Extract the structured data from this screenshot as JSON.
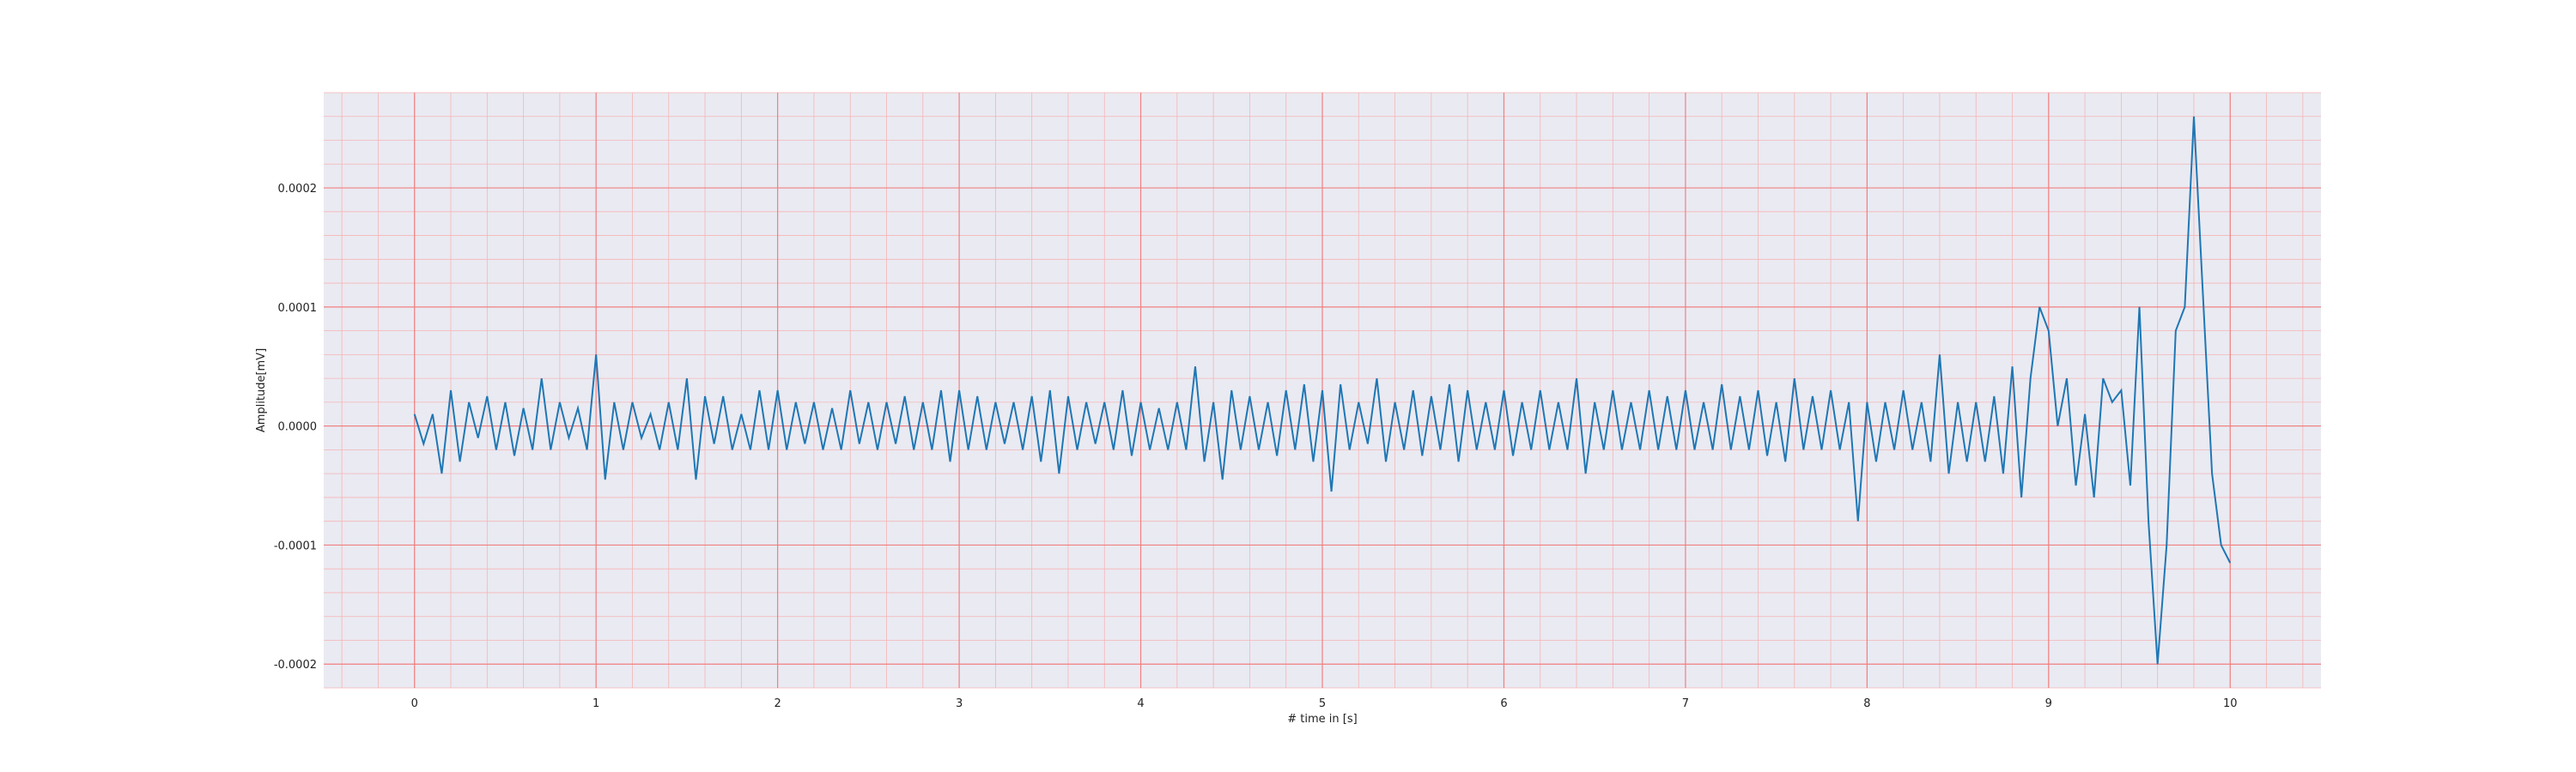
{
  "chart_data": {
    "type": "line",
    "title": "",
    "xlabel": "# time in [s]",
    "ylabel": "Amplitude[mV]",
    "xlim": [
      -0.5,
      10.5
    ],
    "ylim": [
      -0.00022,
      0.00028
    ],
    "xticks": [
      0,
      1,
      2,
      3,
      4,
      5,
      6,
      7,
      8,
      9,
      10
    ],
    "xtick_labels": [
      "0",
      "1",
      "2",
      "3",
      "4",
      "5",
      "6",
      "7",
      "8",
      "9",
      "10"
    ],
    "yticks": [
      -0.0002,
      -0.0001,
      0.0,
      0.0001,
      0.0002
    ],
    "ytick_labels": [
      "-0.0002",
      "-0.0001",
      "0.0000",
      "0.0001",
      "0.0002"
    ],
    "grid": true,
    "minor_grid": true,
    "legend": false,
    "colors": {
      "plot_background": "#eaeaf2",
      "major_grid": "#f08080",
      "minor_grid": "#f5b5b5",
      "line": "#1f77b4"
    },
    "series": [
      {
        "x": [
          0,
          0.05,
          0.1,
          0.15,
          0.2,
          0.25,
          0.3,
          0.35,
          0.4,
          0.45,
          0.5,
          0.55,
          0.6,
          0.65,
          0.7,
          0.75,
          0.8,
          0.85,
          0.9,
          0.95,
          1.0,
          1.05,
          1.1,
          1.15,
          1.2,
          1.25,
          1.3,
          1.35,
          1.4,
          1.45,
          1.5,
          1.55,
          1.6,
          1.65,
          1.7,
          1.75,
          1.8,
          1.85,
          1.9,
          1.95,
          2.0,
          2.05,
          2.1,
          2.15,
          2.2,
          2.25,
          2.3,
          2.35,
          2.4,
          2.45,
          2.5,
          2.55,
          2.6,
          2.65,
          2.7,
          2.75,
          2.8,
          2.85,
          2.9,
          2.95,
          3.0,
          3.05,
          3.1,
          3.15,
          3.2,
          3.25,
          3.3,
          3.35,
          3.4,
          3.45,
          3.5,
          3.55,
          3.6,
          3.65,
          3.7,
          3.75,
          3.8,
          3.85,
          3.9,
          3.95,
          4.0,
          4.05,
          4.1,
          4.15,
          4.2,
          4.25,
          4.3,
          4.35,
          4.4,
          4.45,
          4.5,
          4.55,
          4.6,
          4.65,
          4.7,
          4.75,
          4.8,
          4.85,
          4.9,
          4.95,
          5.0,
          5.05,
          5.1,
          5.15,
          5.2,
          5.25,
          5.3,
          5.35,
          5.4,
          5.45,
          5.5,
          5.55,
          5.6,
          5.65,
          5.7,
          5.75,
          5.8,
          5.85,
          5.9,
          5.95,
          6.0,
          6.05,
          6.1,
          6.15,
          6.2,
          6.25,
          6.3,
          6.35,
          6.4,
          6.45,
          6.5,
          6.55,
          6.6,
          6.65,
          6.7,
          6.75,
          6.8,
          6.85,
          6.9,
          6.95,
          7.0,
          7.05,
          7.1,
          7.15,
          7.2,
          7.25,
          7.3,
          7.35,
          7.4,
          7.45,
          7.5,
          7.55,
          7.6,
          7.65,
          7.7,
          7.75,
          7.8,
          7.85,
          7.9,
          7.95,
          8.0,
          8.05,
          8.1,
          8.15,
          8.2,
          8.25,
          8.3,
          8.35,
          8.4,
          8.45,
          8.5,
          8.55,
          8.6,
          8.65,
          8.7,
          8.75,
          8.8,
          8.85,
          8.9,
          8.95,
          9.0,
          9.05,
          9.1,
          9.15,
          9.2,
          9.25,
          9.3,
          9.35,
          9.4,
          9.45,
          9.5,
          9.55,
          9.6,
          9.65,
          9.7,
          9.75,
          9.8,
          9.85,
          9.9,
          9.95,
          10.0
        ],
        "y": [
          1e-05,
          -1.5e-05,
          1e-05,
          -4e-05,
          3e-05,
          -3e-05,
          2e-05,
          -1e-05,
          2.5e-05,
          -2e-05,
          2e-05,
          -2.5e-05,
          1.5e-05,
          -2e-05,
          4e-05,
          -2e-05,
          2e-05,
          -1e-05,
          1.5e-05,
          -2e-05,
          6e-05,
          -4.5e-05,
          2e-05,
          -2e-05,
          2e-05,
          -1e-05,
          1e-05,
          -2e-05,
          2e-05,
          -2e-05,
          4e-05,
          -4.5e-05,
          2.5e-05,
          -1.5e-05,
          2.5e-05,
          -2e-05,
          1e-05,
          -2e-05,
          3e-05,
          -2e-05,
          3e-05,
          -2e-05,
          2e-05,
          -1.5e-05,
          2e-05,
          -2e-05,
          1.5e-05,
          -2e-05,
          3e-05,
          -1.5e-05,
          2e-05,
          -2e-05,
          2e-05,
          -1.5e-05,
          2.5e-05,
          -2e-05,
          2e-05,
          -2e-05,
          3e-05,
          -3e-05,
          3e-05,
          -2e-05,
          2.5e-05,
          -2e-05,
          2e-05,
          -1.5e-05,
          2e-05,
          -2e-05,
          2.5e-05,
          -3e-05,
          3e-05,
          -4e-05,
          2.5e-05,
          -2e-05,
          2e-05,
          -1.5e-05,
          2e-05,
          -2e-05,
          3e-05,
          -2.5e-05,
          2e-05,
          -2e-05,
          1.5e-05,
          -2e-05,
          2e-05,
          -2e-05,
          5e-05,
          -3e-05,
          2e-05,
          -4.5e-05,
          3e-05,
          -2e-05,
          2.5e-05,
          -2e-05,
          2e-05,
          -2.5e-05,
          3e-05,
          -2e-05,
          3.5e-05,
          -3e-05,
          3e-05,
          -5.5e-05,
          3.5e-05,
          -2e-05,
          2e-05,
          -1.5e-05,
          4e-05,
          -3e-05,
          2e-05,
          -2e-05,
          3e-05,
          -2.5e-05,
          2.5e-05,
          -2e-05,
          3.5e-05,
          -3e-05,
          3e-05,
          -2e-05,
          2e-05,
          -2e-05,
          3e-05,
          -2.5e-05,
          2e-05,
          -2e-05,
          3e-05,
          -2e-05,
          2e-05,
          -2e-05,
          4e-05,
          -4e-05,
          2e-05,
          -2e-05,
          3e-05,
          -2e-05,
          2e-05,
          -2e-05,
          3e-05,
          -2e-05,
          2.5e-05,
          -2e-05,
          3e-05,
          -2e-05,
          2e-05,
          -2e-05,
          3.5e-05,
          -2e-05,
          2.5e-05,
          -2e-05,
          3e-05,
          -2.5e-05,
          2e-05,
          -3e-05,
          4e-05,
          -2e-05,
          2.5e-05,
          -2e-05,
          3e-05,
          -2e-05,
          2e-05,
          -8e-05,
          2e-05,
          -3e-05,
          2e-05,
          -2e-05,
          3e-05,
          -2e-05,
          2e-05,
          -3e-05,
          6e-05,
          -4e-05,
          2e-05,
          -3e-05,
          2e-05,
          -3e-05,
          2.5e-05,
          -4e-05,
          5e-05,
          -6e-05,
          4e-05,
          0.0001,
          8e-05,
          0.0,
          4e-05,
          -5e-05,
          1e-05,
          -6e-05,
          4e-05,
          2e-05,
          3e-05,
          -5e-05,
          0.0001,
          -8e-05,
          -0.0002,
          -0.0001,
          8e-05,
          0.0001,
          0.00026,
          0.00011,
          -4e-05,
          -0.0001,
          -0.000115
        ]
      }
    ]
  }
}
